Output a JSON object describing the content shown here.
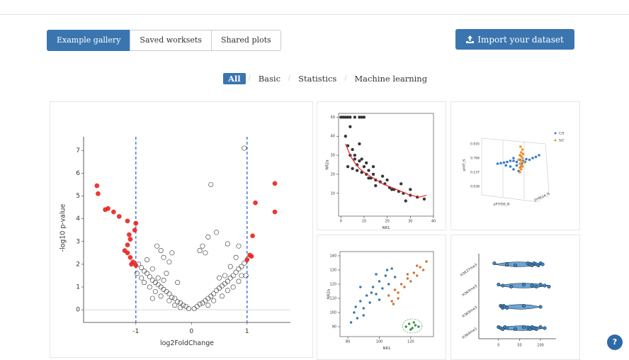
{
  "ui": {
    "tabs": [
      "Example gallery",
      "Saved worksets",
      "Shared plots"
    ],
    "import_button": "Import your dataset",
    "filters": [
      "All",
      "Basic",
      "Statistics",
      "Machine learning"
    ],
    "help": "?"
  },
  "chart_data": [
    {
      "type": "scatter",
      "xlabel": "log2FoldChange",
      "ylabel": "-log10 p-value",
      "xlim": [
        -1.94,
        1.78
      ],
      "ylim": [
        -0.4,
        7.6
      ],
      "xticks": [
        -1,
        0,
        1
      ],
      "yticks": [
        0,
        1,
        2,
        3,
        4,
        5,
        6,
        7
      ],
      "vlines": [
        -1,
        1
      ],
      "vline_color": "#3b74c9",
      "hline": 0,
      "frame": false,
      "series": [
        {
          "color": "#333333",
          "hollow": true,
          "x": [
            -0.05,
            -0.1,
            -0.15,
            -0.2,
            -0.25,
            -0.3,
            -0.35,
            -0.4,
            -0.45,
            -0.5,
            -0.55,
            -0.6,
            -0.65,
            -0.7,
            -0.75,
            -0.8,
            -0.85,
            -0.9,
            -0.95,
            -0.6,
            -0.7,
            -0.8,
            -0.5,
            -0.4,
            -0.3,
            -0.55,
            -0.65,
            -0.75,
            -0.85,
            -0.9,
            -0.45,
            -0.35,
            -0.55,
            -0.62,
            -0.4,
            -0.2,
            -0.7,
            -0.98,
            -0.5,
            -0.25,
            0.05,
            0.1,
            0.15,
            0.2,
            0.25,
            0.3,
            0.35,
            0.4,
            0.45,
            0.5,
            0.55,
            0.6,
            0.65,
            0.7,
            0.75,
            0.8,
            0.85,
            0.9,
            0.95,
            0.6,
            0.7,
            0.8,
            0.5,
            0.4,
            0.3,
            0.55,
            0.65,
            0.75,
            0.85,
            0.9,
            0.25,
            0.2,
            0.3,
            0.45,
            0.15,
            0.35,
            0.95,
            0.65,
            0.85,
            0.98
          ],
          "y": [
            0.05,
            0.15,
            0.2,
            0.3,
            0.35,
            0.5,
            0.55,
            0.7,
            0.8,
            0.9,
            1.0,
            1.1,
            1.2,
            1.3,
            1.45,
            1.6,
            1.7,
            1.85,
            2.0,
            1.4,
            1.8,
            2.2,
            1.3,
            0.4,
            0.2,
            0.6,
            0.8,
            1.0,
            1.2,
            1.4,
            1.6,
            2.5,
            2.6,
            2.8,
            2.1,
            0.1,
            0.5,
            1.6,
            2.3,
            1.2,
            0.05,
            0.15,
            0.25,
            0.3,
            0.4,
            0.5,
            0.6,
            0.7,
            0.85,
            0.95,
            1.05,
            1.15,
            1.25,
            1.4,
            1.5,
            1.65,
            1.8,
            1.9,
            2.05,
            1.5,
            1.9,
            2.3,
            1.4,
            0.4,
            0.2,
            0.6,
            0.85,
            1.0,
            1.25,
            1.5,
            2.5,
            2.8,
            3.2,
            3.4,
            2.6,
            5.5,
            7.1,
            2.9,
            2.8,
            1.5
          ]
        },
        {
          "color": "#e8231f",
          "x": [
            -1.7,
            -1.68,
            -1.55,
            -1.5,
            -1.4,
            -1.3,
            -1.15,
            -1.0,
            -1.02,
            -1.12,
            -1.1,
            -1.15,
            -1.2,
            -1.15,
            -1.1,
            -1.05,
            -1.08,
            -1.0,
            1.5,
            1.5,
            1.15,
            1.1,
            1.05,
            1.08,
            1.0
          ],
          "y": [
            5.45,
            5.1,
            4.4,
            4.45,
            4.3,
            4.1,
            3.9,
            3.8,
            3.5,
            3.3,
            3.1,
            2.85,
            2.6,
            2.5,
            2.3,
            2.1,
            2.0,
            1.95,
            5.55,
            4.3,
            4.7,
            3.25,
            2.4,
            2.35,
            2.2
          ]
        }
      ]
    },
    {
      "type": "scatter",
      "xlabel": "NR1",
      "ylabel": "NR2a",
      "xlim": [
        -1,
        40
      ],
      "ylim": [
        -2,
        52
      ],
      "xticks": [
        0,
        10,
        20,
        30,
        40
      ],
      "yticks": [
        10,
        20,
        30,
        40,
        50
      ],
      "frame": true,
      "series": [
        {
          "color": "#222222",
          "x": [
            0,
            1,
            2,
            3,
            4,
            6,
            8,
            9,
            10,
            2,
            3,
            4,
            5,
            6,
            7,
            8,
            10,
            12,
            14,
            3,
            5,
            7,
            9,
            11,
            13,
            15,
            17,
            19,
            21,
            23,
            25,
            27,
            30,
            33,
            36,
            6,
            9,
            12,
            15,
            18,
            22,
            26,
            30,
            4,
            8,
            11,
            14,
            20,
            28
          ],
          "y": [
            50,
            50,
            50,
            50,
            50,
            50,
            50,
            50,
            50,
            40,
            35,
            30,
            33,
            28,
            25,
            27,
            24,
            22,
            20,
            24,
            23,
            22,
            21,
            20,
            18,
            17,
            16,
            15,
            13,
            12,
            11,
            10,
            9,
            8,
            7,
            30,
            28,
            18,
            14,
            19,
            12,
            15,
            12,
            45,
            36,
            26,
            24,
            17,
            6
          ]
        },
        {
          "color": "#e8231f",
          "mode": "line",
          "x": [
            2,
            4,
            6,
            8,
            10,
            14,
            18,
            22,
            26,
            30,
            34,
            37
          ],
          "y": [
            36,
            30,
            26,
            23,
            21,
            18,
            15,
            13,
            11,
            9,
            8,
            9
          ]
        }
      ]
    },
    {
      "type": "scatter3d",
      "xlim": [
        0,
        1
      ],
      "ylim": [
        0,
        1
      ],
      "tick_texts": [
        "0.935",
        "0.766",
        "0.137",
        "0.038"
      ],
      "axis_labels": [
        "pAKT_N",
        "pP70S6_N",
        "DYRK1A_N"
      ],
      "series": [
        {
          "name": "C/S",
          "color": "#3a7dc9",
          "x": [
            0.25,
            0.3,
            0.35,
            0.4,
            0.45,
            0.5,
            0.55,
            0.6,
            0.62,
            0.65,
            0.7,
            0.75,
            0.8,
            0.85,
            0.9,
            0.45,
            0.5,
            0.55,
            0.6,
            0.5,
            0.58,
            0.63,
            0.38,
            0.68
          ],
          "y": [
            0.55,
            0.56,
            0.57,
            0.58,
            0.6,
            0.6,
            0.58,
            0.62,
            0.5,
            0.6,
            0.63,
            0.62,
            0.65,
            0.67,
            0.7,
            0.5,
            0.45,
            0.52,
            0.7,
            0.65,
            0.42,
            0.55,
            0.52,
            0.58
          ]
        },
        {
          "name": "S/C",
          "color": "#f0932b",
          "x": [
            0.6,
            0.62,
            0.64,
            0.6,
            0.62,
            0.64,
            0.6,
            0.62,
            0.64,
            0.58,
            0.66,
            0.61,
            0.63,
            0.6,
            0.62,
            0.65
          ],
          "y": [
            0.4,
            0.45,
            0.5,
            0.55,
            0.6,
            0.65,
            0.7,
            0.75,
            0.8,
            0.62,
            0.58,
            0.85,
            0.52,
            0.48,
            0.68,
            0.72
          ]
        }
      ]
    },
    {
      "type": "scatter",
      "xlabel": "NR1",
      "ylabel": "NR2a",
      "xlim": [
        75,
        134.5
      ],
      "ylim": [
        83,
        143
      ],
      "xticks": [
        80,
        100,
        120
      ],
      "yticks": [
        90,
        100,
        110,
        120,
        130,
        140
      ],
      "frame": true,
      "series": [
        {
          "color": "#2e6a9e",
          "x": [
            82,
            84,
            86,
            88,
            90,
            92,
            94,
            96,
            98,
            100,
            102,
            104,
            106,
            108,
            85,
            90,
            95,
            100,
            105,
            110,
            88,
            98
          ],
          "y": [
            93,
            100,
            96,
            108,
            103,
            112,
            107,
            118,
            113,
            122,
            117,
            126,
            120,
            131,
            104,
            98,
            114,
            109,
            130,
            125,
            118,
            127
          ]
        },
        {
          "color": "#c9692a",
          "x": [
            106,
            108,
            110,
            112,
            114,
            116,
            118,
            120,
            122,
            124,
            126,
            128,
            130,
            112,
            118,
            124,
            109
          ],
          "y": [
            112,
            108,
            116,
            114,
            120,
            118,
            124,
            122,
            128,
            126,
            132,
            130,
            136,
            110,
            127,
            133,
            106
          ]
        },
        {
          "color": "#2e8b3a",
          "encircled": true,
          "x": [
            117,
            119,
            121,
            123,
            125,
            120,
            122
          ],
          "y": [
            90,
            92,
            89,
            91,
            90,
            88,
            93
          ]
        }
      ]
    },
    {
      "type": "violin",
      "xlim": [
        -47,
        137
      ],
      "xticks": [
        0,
        50,
        100
      ],
      "color": "#3a86c8",
      "groups": [
        {
          "name": "H3K27me3",
          "values": [
            -10,
            20,
            40,
            70,
            75,
            80,
            85,
            90,
            95,
            100,
            105
          ]
        },
        {
          "name": "H3K4me3",
          "values": [
            0,
            10,
            30,
            60,
            80,
            90,
            100,
            110,
            120
          ]
        },
        {
          "name": "H3K9me3",
          "values": [
            5,
            8,
            10,
            12,
            15,
            20,
            60,
            100
          ]
        },
        {
          "name": "H3K4me1",
          "values": [
            0,
            5,
            10,
            15,
            20,
            40,
            60,
            70,
            75,
            80,
            85,
            90,
            100,
            110
          ]
        }
      ]
    }
  ]
}
